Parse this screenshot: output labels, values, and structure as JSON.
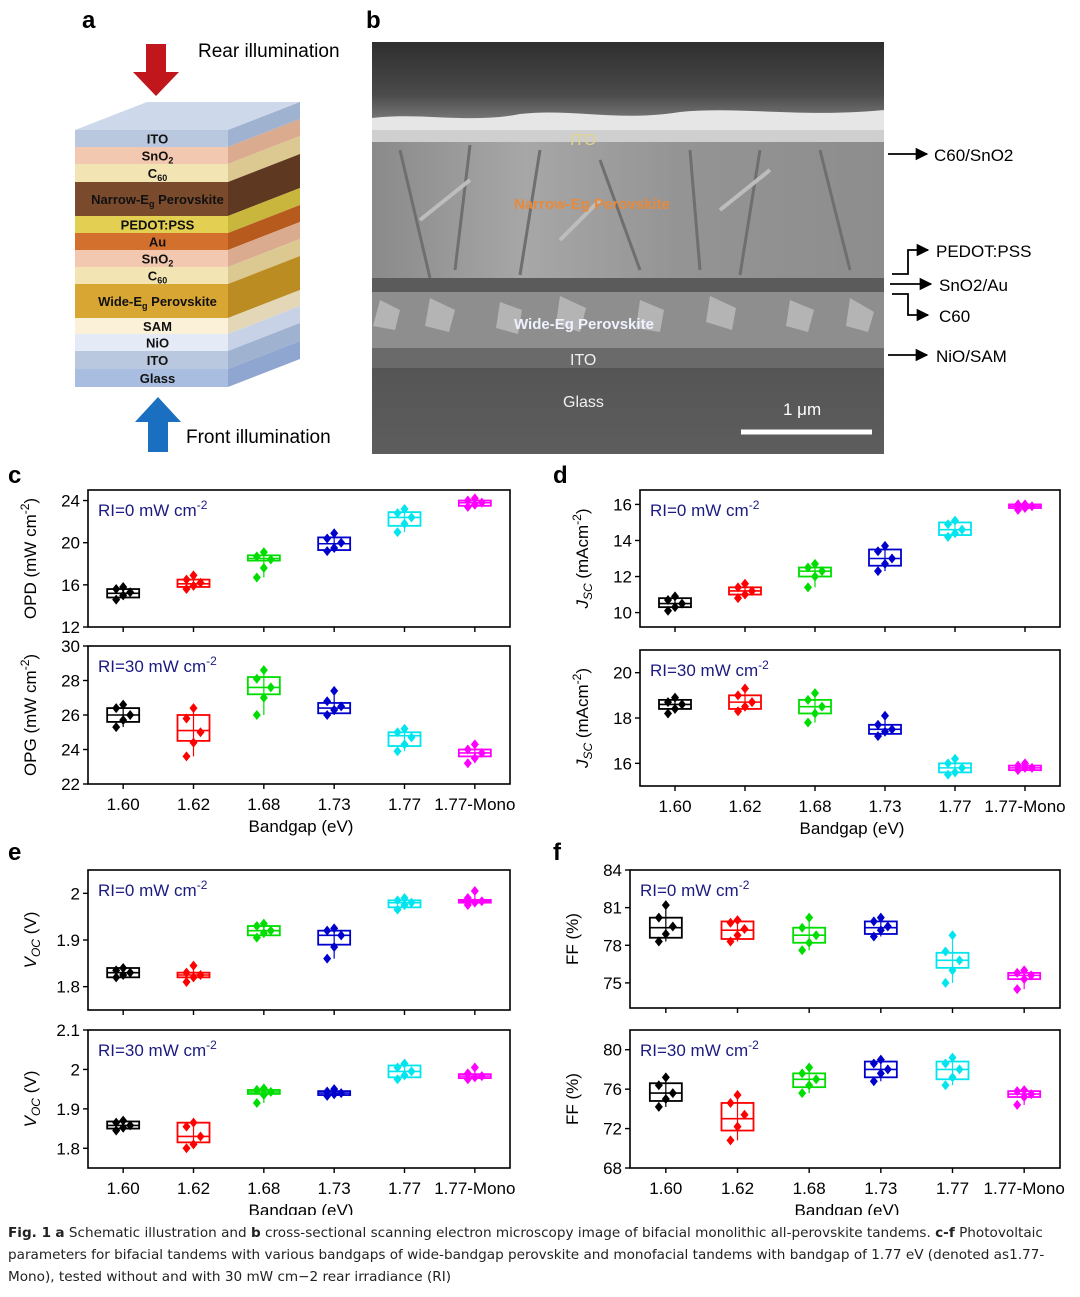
{
  "panels": {
    "a": "a",
    "b": "b",
    "c": "c",
    "d": "d",
    "e": "e",
    "f": "f"
  },
  "schematic": {
    "rear_label": "Rear illumination",
    "front_label": "Front illumination",
    "layers": [
      {
        "label": "ITO",
        "color": "#b9c8df",
        "side": "#9fb2cf",
        "top": "#cdd8ea"
      },
      {
        "label": "SnO2",
        "color": "#f2c8b0",
        "side": "#dbab8f"
      },
      {
        "label": "C60",
        "color": "#f3e4b4",
        "side": "#dcc992"
      },
      {
        "label": "Narrow-Eg Perovskite",
        "color": "#7a4a2c",
        "side": "#5e3820"
      },
      {
        "label": "PEDOT:PSS",
        "color": "#e3d052",
        "side": "#c9b63c"
      },
      {
        "label": "Au",
        "color": "#d4702d",
        "side": "#b65a1e"
      },
      {
        "label": "SnO2",
        "color": "#f2c8b0",
        "side": "#dbab8f"
      },
      {
        "label": "C60",
        "color": "#f3e4b4",
        "side": "#dcc992"
      },
      {
        "label": "Wide-Eg Perovskite",
        "color": "#d8a632",
        "side": "#bb8c22"
      },
      {
        "label": "SAM",
        "color": "#fbf1d8",
        "side": "#e4d7b8"
      },
      {
        "label": "NiO",
        "color": "#e4ebf6",
        "side": "#c7d2e6"
      },
      {
        "label": "ITO",
        "color": "#b9c8df",
        "side": "#9fb2cf"
      },
      {
        "label": "Glass",
        "color": "#a8bde0",
        "side": "#8ea6d0"
      }
    ]
  },
  "sem": {
    "labels": {
      "ito_top": "ITO",
      "narrow": "Narrow-Eg Perovskite",
      "wide": "Wide-Eg Perovskite",
      "ito_bottom": "ITO",
      "glass": "Glass",
      "scale": "1 μm"
    },
    "annotations": {
      "c60_sno2": "C60/SnO2",
      "pedot": "PEDOT:PSS",
      "sno2_au": "SnO2/Au",
      "c60": "C60",
      "nio_sam": "NiO/SAM"
    }
  },
  "colors": [
    "#000000",
    "#ff0000",
    "#00dd00",
    "#0000cc",
    "#00e5ee",
    "#ff00ff"
  ],
  "chart_data": [
    {
      "panel": "c",
      "type": "box",
      "subtitle": "RI=0 mW cm-2",
      "ylabel": "OPD (mW cm-2)",
      "ylim": [
        12,
        25
      ],
      "yticks": [
        12,
        16,
        20,
        24
      ],
      "categories": [
        "1.60",
        "1.62",
        "1.68",
        "1.73",
        "1.77",
        "1.77-Mono"
      ],
      "boxes": [
        [
          14.8,
          15.2,
          15.6
        ],
        [
          15.8,
          16.1,
          16.5
        ],
        [
          18.3,
          18.5,
          18.8
        ],
        [
          19.3,
          19.9,
          20.5
        ],
        [
          21.6,
          22.4,
          22.9
        ],
        [
          23.5,
          23.8,
          24.0
        ]
      ],
      "points": [
        [
          14.6,
          15.0,
          15.3,
          15.6,
          15.8
        ],
        [
          15.6,
          15.9,
          16.2,
          16.5,
          16.9
        ],
        [
          16.7,
          17.6,
          18.4,
          18.7,
          19.1
        ],
        [
          19.2,
          19.5,
          20.0,
          20.4,
          20.9
        ],
        [
          21.0,
          21.8,
          22.4,
          22.8,
          23.2
        ],
        [
          23.4,
          23.6,
          23.8,
          24.0,
          24.2
        ]
      ]
    },
    {
      "panel": "c",
      "type": "box",
      "subtitle": "RI=30 mW cm-2",
      "ylabel": "OPG (mW cm-2)",
      "ylim": [
        22,
        30
      ],
      "yticks": [
        22,
        24,
        26,
        28,
        30
      ],
      "xlabel": "Bandgap (eV)",
      "categories": [
        "1.60",
        "1.62",
        "1.68",
        "1.73",
        "1.77",
        "1.77-Mono"
      ],
      "boxes": [
        [
          25.6,
          26.0,
          26.4
        ],
        [
          24.5,
          25.1,
          26.0
        ],
        [
          27.2,
          27.6,
          28.2
        ],
        [
          26.1,
          26.4,
          26.7
        ],
        [
          24.2,
          24.8,
          25.0
        ],
        [
          23.6,
          23.8,
          24.0
        ]
      ],
      "points": [
        [
          25.3,
          25.7,
          26.0,
          26.4,
          26.6
        ],
        [
          23.6,
          24.4,
          25.0,
          25.8,
          26.4
        ],
        [
          26.0,
          27.0,
          27.6,
          28.1,
          28.6
        ],
        [
          26.0,
          26.3,
          26.5,
          26.8,
          27.4
        ],
        [
          23.9,
          24.3,
          24.7,
          25.0,
          25.2
        ],
        [
          23.2,
          23.5,
          23.8,
          24.0,
          24.3
        ]
      ]
    },
    {
      "panel": "d",
      "type": "box",
      "subtitle": "RI=0 mW cm-2",
      "ylabel": "JSC (mAcm-2)",
      "ylim": [
        9.2,
        16.8
      ],
      "yticks": [
        10,
        12,
        14,
        16
      ],
      "categories": [
        "1.60",
        "1.62",
        "1.68",
        "1.73",
        "1.77",
        "1.77-Mono"
      ],
      "boxes": [
        [
          10.3,
          10.5,
          10.8
        ],
        [
          11.0,
          11.2,
          11.4
        ],
        [
          12.0,
          12.3,
          12.5
        ],
        [
          12.6,
          13.0,
          13.5
        ],
        [
          14.3,
          14.6,
          15.0
        ],
        [
          15.8,
          15.9,
          16.0
        ]
      ],
      "points": [
        [
          10.1,
          10.3,
          10.5,
          10.7,
          10.9
        ],
        [
          10.8,
          11.0,
          11.2,
          11.4,
          11.6
        ],
        [
          11.4,
          12.0,
          12.3,
          12.5,
          12.7
        ],
        [
          12.3,
          12.7,
          13.0,
          13.4,
          13.7
        ],
        [
          14.2,
          14.4,
          14.6,
          14.9,
          15.1
        ],
        [
          15.7,
          15.8,
          15.9,
          16.0,
          16.0
        ]
      ]
    },
    {
      "panel": "d",
      "type": "box",
      "subtitle": "RI=30 mW cm-2",
      "ylabel": "JSC (mAcm-2)",
      "ylim": [
        15,
        21
      ],
      "yticks": [
        16,
        18,
        20
      ],
      "xlabel": "Bandgap (eV)",
      "categories": [
        "1.60",
        "1.62",
        "1.68",
        "1.73",
        "1.77",
        "1.77-Mono"
      ],
      "boxes": [
        [
          18.4,
          18.6,
          18.8
        ],
        [
          18.4,
          18.7,
          19.0
        ],
        [
          18.2,
          18.5,
          18.8
        ],
        [
          17.3,
          17.5,
          17.7
        ],
        [
          15.6,
          15.8,
          16.0
        ],
        [
          15.7,
          15.8,
          15.9
        ]
      ],
      "points": [
        [
          18.2,
          18.4,
          18.6,
          18.7,
          18.9
        ],
        [
          18.3,
          18.5,
          18.7,
          19.0,
          19.3
        ],
        [
          17.8,
          18.2,
          18.5,
          18.8,
          19.1
        ],
        [
          17.2,
          17.4,
          17.5,
          17.7,
          18.1
        ],
        [
          15.5,
          15.6,
          15.8,
          16.0,
          16.2
        ],
        [
          15.7,
          15.8,
          15.8,
          15.9,
          16.0
        ]
      ]
    },
    {
      "panel": "e",
      "type": "box",
      "subtitle": "RI=0 mW cm-2",
      "ylabel": "VOC (V)",
      "ylim": [
        1.75,
        2.05
      ],
      "yticks": [
        1.8,
        1.9,
        2.0
      ],
      "categories": [
        "1.60",
        "1.62",
        "1.68",
        "1.73",
        "1.77",
        "1.77-Mono"
      ],
      "boxes": [
        [
          1.82,
          1.83,
          1.84
        ],
        [
          1.82,
          1.825,
          1.83
        ],
        [
          1.91,
          1.92,
          1.93
        ],
        [
          1.89,
          1.91,
          1.92
        ],
        [
          1.97,
          1.98,
          1.985
        ],
        [
          1.98,
          1.983,
          1.986
        ]
      ],
      "points": [
        [
          1.82,
          1.825,
          1.83,
          1.835,
          1.84
        ],
        [
          1.81,
          1.82,
          1.825,
          1.83,
          1.845
        ],
        [
          1.905,
          1.915,
          1.92,
          1.93,
          1.935
        ],
        [
          1.86,
          1.885,
          1.91,
          1.92,
          1.925
        ],
        [
          1.965,
          1.975,
          1.98,
          1.985,
          1.99
        ],
        [
          1.975,
          1.98,
          1.983,
          1.99,
          2.005
        ]
      ]
    },
    {
      "panel": "e",
      "type": "box",
      "subtitle": "RI=30 mW cm-2",
      "ylabel": "VOC (V)",
      "ylim": [
        1.75,
        2.1
      ],
      "yticks": [
        1.8,
        1.9,
        2.0,
        2.1
      ],
      "xlabel": "Bandgap (eV)",
      "categories": [
        "1.60",
        "1.62",
        "1.68",
        "1.73",
        "1.77",
        "1.77-Mono"
      ],
      "boxes": [
        [
          1.85,
          1.858,
          1.868
        ],
        [
          1.815,
          1.83,
          1.865
        ],
        [
          1.938,
          1.943,
          1.948
        ],
        [
          1.935,
          1.94,
          1.945
        ],
        [
          1.98,
          1.995,
          2.01
        ],
        [
          1.978,
          1.983,
          1.988
        ]
      ],
      "points": [
        [
          1.845,
          1.852,
          1.858,
          1.865,
          1.87
        ],
        [
          1.8,
          1.81,
          1.83,
          1.855,
          1.865
        ],
        [
          1.915,
          1.935,
          1.943,
          1.948,
          1.952
        ],
        [
          1.933,
          1.937,
          1.94,
          1.944,
          1.95
        ],
        [
          1.975,
          1.985,
          1.995,
          2.005,
          2.015
        ],
        [
          1.975,
          1.98,
          1.983,
          1.99,
          2.005
        ]
      ]
    },
    {
      "panel": "f",
      "type": "box",
      "subtitle": "RI=0 mW cm-2",
      "ylabel": "FF (%)",
      "ylim": [
        73,
        84
      ],
      "yticks": [
        75,
        78,
        81,
        84
      ],
      "categories": [
        "1.60",
        "1.62",
        "1.68",
        "1.73",
        "1.77",
        "1.77-Mono"
      ],
      "boxes": [
        [
          78.6,
          79.4,
          80.2
        ],
        [
          78.5,
          79.2,
          79.9
        ],
        [
          78.2,
          78.8,
          79.4
        ],
        [
          78.9,
          79.4,
          79.9
        ],
        [
          76.2,
          76.8,
          77.4
        ],
        [
          75.3,
          75.6,
          75.8
        ]
      ],
      "points": [
        [
          78.3,
          78.9,
          79.5,
          80.2,
          81.2
        ],
        [
          78.3,
          78.8,
          79.3,
          79.8,
          80.0
        ],
        [
          77.6,
          78.2,
          78.8,
          79.4,
          80.2
        ],
        [
          78.7,
          79.2,
          79.5,
          79.9,
          80.2
        ],
        [
          75.0,
          76.0,
          76.8,
          77.5,
          78.8
        ],
        [
          74.5,
          75.3,
          75.6,
          75.8,
          76.0
        ]
      ]
    },
    {
      "panel": "f",
      "type": "box",
      "subtitle": "RI=30 mW cm-2",
      "ylabel": "FF (%)",
      "ylim": [
        68,
        82
      ],
      "yticks": [
        68,
        72,
        76,
        80
      ],
      "xlabel": "Bandgap (eV)",
      "categories": [
        "1.60",
        "1.62",
        "1.68",
        "1.73",
        "1.77",
        "1.77-Mono"
      ],
      "boxes": [
        [
          74.8,
          75.6,
          76.6
        ],
        [
          71.8,
          73.0,
          74.6
        ],
        [
          76.2,
          77.0,
          77.6
        ],
        [
          77.2,
          78.0,
          78.8
        ],
        [
          77.0,
          78.0,
          78.8
        ],
        [
          75.2,
          75.5,
          75.8
        ]
      ],
      "points": [
        [
          74.2,
          75.0,
          75.6,
          76.4,
          77.2
        ],
        [
          70.8,
          72.2,
          73.4,
          74.6,
          75.4
        ],
        [
          75.6,
          76.4,
          77.0,
          77.6,
          78.2
        ],
        [
          76.8,
          77.6,
          78.0,
          78.6,
          79.0
        ],
        [
          76.4,
          77.2,
          78.0,
          78.6,
          79.2
        ],
        [
          74.4,
          75.2,
          75.5,
          75.8,
          75.9
        ]
      ]
    }
  ],
  "caption": {
    "title": "Fig. 1",
    "a": "a",
    "text1": " Schematic illustration and ",
    "b": "b",
    "text2": " cross-sectional scanning electron microscopy image of bifacial monolithic all-perovskite tandems. ",
    "cf": "c-f",
    "text3": " Photovoltaic parameters for bifacial tandems with various bandgaps of wide-bandgap perovskite and monofacial tandems with bandgap of 1.77 eV (denoted as1.77-Mono), tested without and with 30 mW cm−2 rear irradiance (RI)"
  }
}
